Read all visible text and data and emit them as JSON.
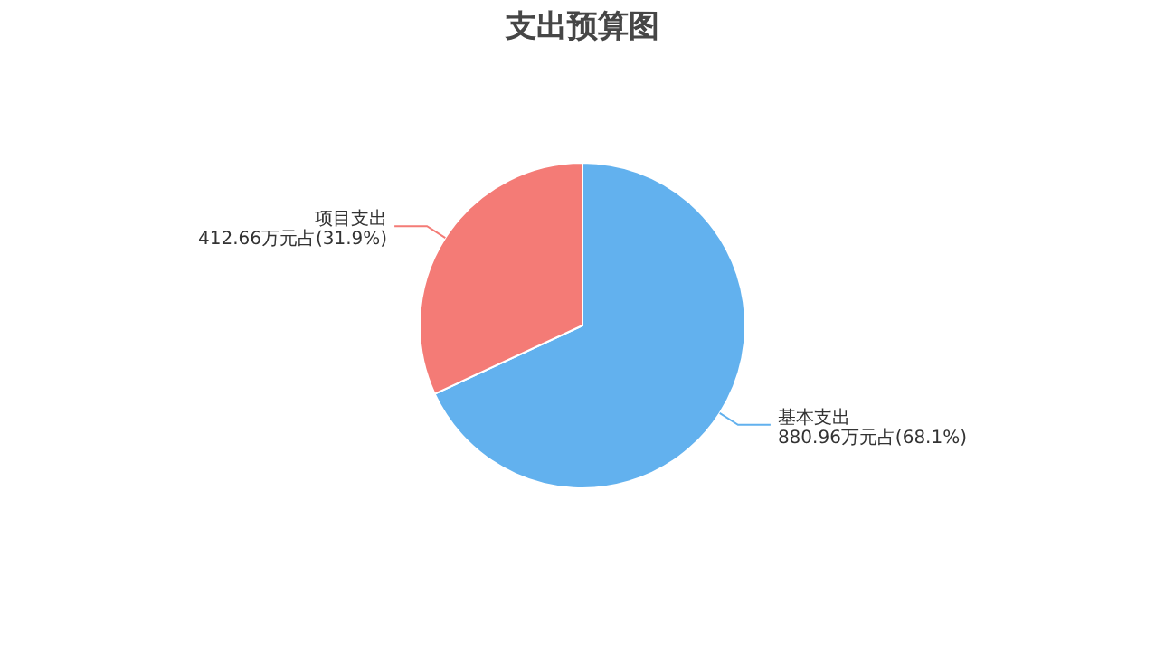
{
  "chart_data": {
    "type": "pie",
    "title": "支出预算图",
    "categories": [
      "基本支出",
      "项目支出"
    ],
    "values": [
      880.96,
      412.66
    ],
    "value_labels": [
      "880.96万元占(68.1%)",
      "412.66万元占(31.9%)"
    ],
    "colors": [
      "#62b1ee",
      "#f47b76"
    ]
  }
}
